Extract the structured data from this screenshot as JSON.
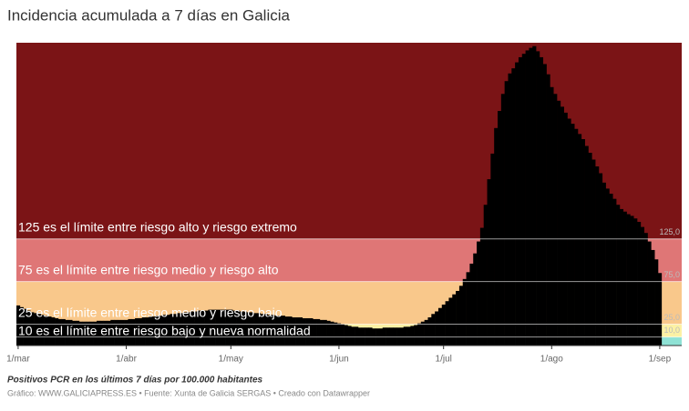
{
  "chart_data": {
    "type": "bar",
    "title": "Incidencia acumulada a 7 días en Galicia",
    "subtitle": "Positivos PCR en los últimos 7 días por 100.000 habitantes",
    "source": "Gráfico: WWW.GALICIAPRESS.ES • Fuente: Xunta de Galicia SERGAS • Creado con Datawrapper",
    "x": [
      "1/mar",
      "2/mar",
      "3/mar",
      "4/mar",
      "5/mar",
      "6/mar",
      "7/mar",
      "8/mar",
      "9/mar",
      "10/mar",
      "11/mar",
      "12/mar",
      "13/mar",
      "14/mar",
      "15/mar",
      "16/mar",
      "17/mar",
      "18/mar",
      "19/mar",
      "20/mar",
      "21/mar",
      "22/mar",
      "23/mar",
      "24/mar",
      "25/mar",
      "26/mar",
      "27/mar",
      "28/mar",
      "29/mar",
      "30/mar",
      "31/mar",
      "1/abr",
      "2/abr",
      "3/abr",
      "4/abr",
      "5/abr",
      "6/abr",
      "7/abr",
      "8/abr",
      "9/abr",
      "10/abr",
      "11/abr",
      "12/abr",
      "13/abr",
      "14/abr",
      "15/abr",
      "16/abr",
      "17/abr",
      "18/abr",
      "19/abr",
      "20/abr",
      "21/abr",
      "22/abr",
      "23/abr",
      "24/abr",
      "25/abr",
      "26/abr",
      "27/abr",
      "28/abr",
      "29/abr",
      "30/abr",
      "1/may",
      "2/may",
      "3/may",
      "4/may",
      "5/may",
      "6/may",
      "7/may",
      "8/may",
      "9/may",
      "10/may",
      "11/may",
      "12/may",
      "13/may",
      "14/may",
      "15/may",
      "16/may",
      "17/may",
      "18/may",
      "19/may",
      "20/may",
      "21/may",
      "22/may",
      "23/may",
      "24/may",
      "25/may",
      "26/may",
      "27/may",
      "28/may",
      "29/may",
      "30/may",
      "31/may",
      "1/jun",
      "2/jun",
      "3/jun",
      "4/jun",
      "5/jun",
      "6/jun",
      "7/jun",
      "8/jun",
      "9/jun",
      "10/jun",
      "11/jun",
      "12/jun",
      "13/jun",
      "14/jun",
      "15/jun",
      "16/jun",
      "17/jun",
      "18/jun",
      "19/jun",
      "20/jun",
      "21/jun",
      "22/jun",
      "23/jun",
      "24/jun",
      "25/jun",
      "26/jun",
      "27/jun",
      "28/jun",
      "29/jun",
      "30/jun",
      "1/jul",
      "2/jul",
      "3/jul",
      "4/jul",
      "5/jul",
      "6/jul",
      "7/jul",
      "8/jul",
      "9/jul",
      "10/jul",
      "11/jul",
      "12/jul",
      "13/jul",
      "14/jul",
      "15/jul",
      "16/jul",
      "17/jul",
      "18/jul",
      "19/jul",
      "20/jul",
      "21/jul",
      "22/jul",
      "23/jul",
      "24/jul",
      "25/jul",
      "26/jul",
      "27/jul",
      "28/jul",
      "29/jul",
      "30/jul",
      "31/jul",
      "1/ago",
      "2/ago",
      "3/ago",
      "4/ago",
      "5/ago",
      "6/ago",
      "7/ago",
      "8/ago",
      "9/ago",
      "10/ago",
      "11/ago",
      "12/ago",
      "13/ago",
      "14/ago",
      "15/ago",
      "16/ago",
      "17/ago",
      "18/ago",
      "19/ago",
      "20/ago",
      "21/ago",
      "22/ago",
      "23/ago",
      "24/ago",
      "25/ago",
      "26/ago",
      "27/ago",
      "28/ago",
      "29/ago",
      "30/ago",
      "31/ago",
      "1/sep"
    ],
    "values": [
      47,
      45,
      43,
      41,
      39,
      38,
      37,
      36,
      35,
      34,
      33,
      32,
      31,
      31,
      30,
      30,
      29,
      29,
      28,
      28,
      28,
      28,
      28,
      29,
      29,
      29,
      29,
      30,
      30,
      30,
      30,
      30,
      31,
      31,
      32,
      32,
      33,
      33,
      34,
      34,
      35,
      35,
      36,
      36,
      37,
      37,
      38,
      38,
      39,
      39,
      40,
      40,
      41,
      41,
      41,
      42,
      42,
      42,
      42,
      42,
      42,
      42,
      41,
      41,
      40,
      40,
      39,
      39,
      38,
      38,
      37,
      37,
      36,
      36,
      35,
      35,
      35,
      34,
      34,
      33,
      33,
      33,
      32,
      32,
      32,
      31,
      31,
      30,
      30,
      29,
      28,
      27,
      26,
      25,
      24,
      23,
      22,
      22,
      21,
      21,
      21,
      21,
      20,
      20,
      20,
      21,
      21,
      21,
      21,
      21,
      21,
      22,
      22,
      23,
      24,
      26,
      28,
      30,
      33,
      37,
      40,
      44,
      48,
      52,
      56,
      60,
      64,
      70,
      78,
      86,
      96,
      108,
      122,
      138,
      165,
      195,
      225,
      255,
      275,
      295,
      310,
      319,
      325,
      332,
      338,
      342,
      346,
      349,
      351,
      345,
      338,
      330,
      318,
      303,
      295,
      287,
      280,
      273,
      266,
      260,
      254,
      248,
      242,
      234,
      226,
      218,
      210,
      202,
      191,
      184,
      178,
      172,
      165,
      160,
      157,
      154,
      152,
      149,
      145,
      139,
      132,
      122,
      112,
      101,
      85
    ],
    "color": "#000000",
    "xticks": [
      "1/mar",
      "1/abr",
      "1/may",
      "1/jun",
      "1/jul",
      "1/ago",
      "1/sep"
    ],
    "ylim": [
      0,
      355
    ],
    "yticks": [
      {
        "value": 10,
        "label": "10,0"
      },
      {
        "value": 25,
        "label": "25,0"
      },
      {
        "value": 75,
        "label": "75,0"
      },
      {
        "value": 125,
        "label": "125,0"
      }
    ],
    "band_colors": [
      "#8fe2d5",
      "#fcf1a4",
      "#f9c88b",
      "#df7676",
      "#7b1416"
    ],
    "annotations": [
      "10 es el límite entre riesgo bajo y nueva normalidad",
      "25 es el límite entre riesgo medio y riesgo bajo",
      "75 es el límite entre riesgo medio y riesgo alto",
      "125 es el límite entre riesgo alto y riesgo extremo"
    ],
    "grid": true
  }
}
